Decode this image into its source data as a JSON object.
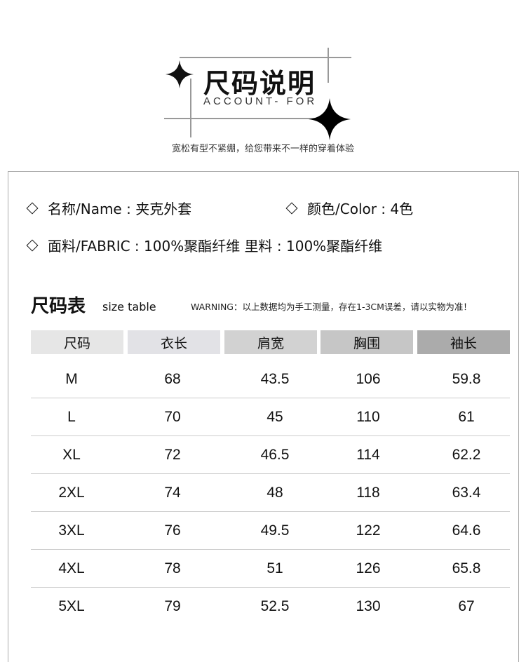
{
  "header": {
    "title": "尺码说明",
    "subtitle": "ACCOUNT- FOR",
    "tagline": "宽松有型不紧绷，给您带来不一样的穿着体验"
  },
  "info": {
    "name": "名称/Name : 夹克外套",
    "color": "颜色/Color : 4色",
    "fabric": "面料/FABRIC : 100%聚酯纤维  里料 :  100%聚酯纤维"
  },
  "size_table": {
    "title": "尺码表",
    "title_en": "size table",
    "warning": "WARNING：以上数据均为手工测量，存在1-3CM误差，请以实物为准！",
    "columns": [
      "尺码",
      "衣长",
      "肩宽",
      "胸围",
      "袖长"
    ],
    "header_colors": [
      "#e6e6e6",
      "#e2e2e6",
      "#d2d2d2",
      "#c6c6c6",
      "#ababab"
    ],
    "rows": [
      [
        "M",
        "68",
        "43.5",
        "106",
        "59.8"
      ],
      [
        "L",
        "70",
        "45",
        "110",
        "61"
      ],
      [
        "XL",
        "72",
        "46.5",
        "114",
        "62.2"
      ],
      [
        "2XL",
        "74",
        "48",
        "118",
        "63.4"
      ],
      [
        "3XL",
        "76",
        "49.5",
        "122",
        "64.6"
      ],
      [
        "4XL",
        "78",
        "51",
        "126",
        "65.8"
      ],
      [
        "5XL",
        "79",
        "52.5",
        "130",
        "67"
      ]
    ]
  }
}
